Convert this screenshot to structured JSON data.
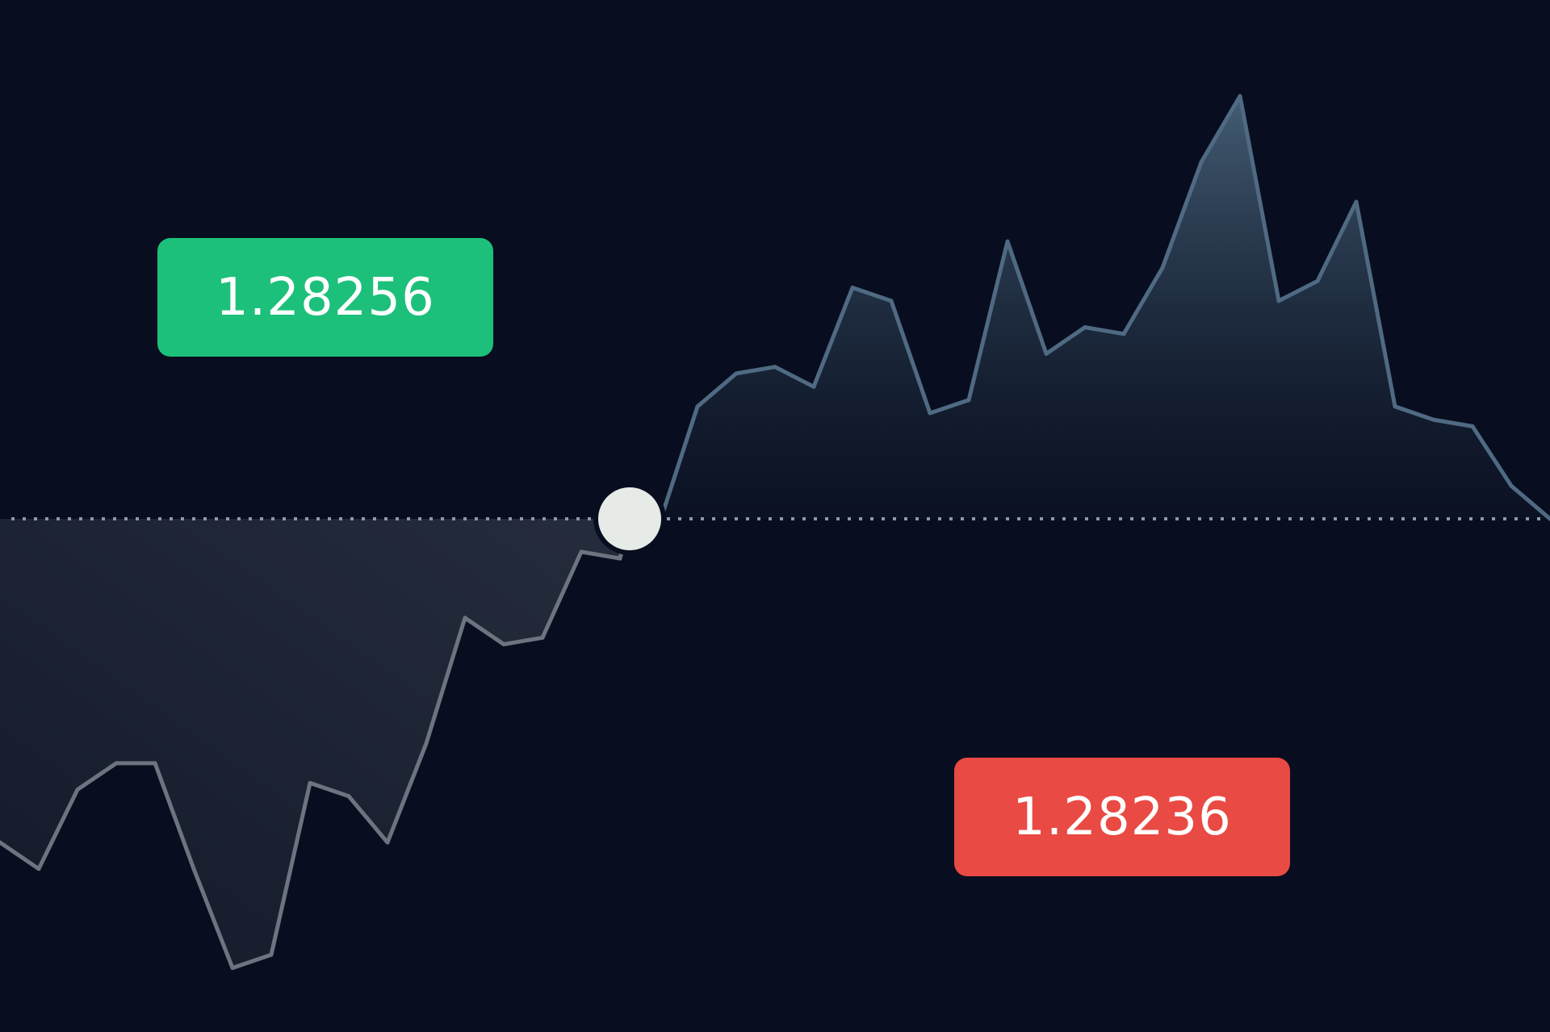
{
  "buy_price": {
    "label": "1.28256",
    "color": "#1dc07a"
  },
  "sell_price": {
    "label": "1.28236",
    "color": "#e94a43"
  },
  "colors": {
    "background": "#080e1f",
    "line_up": "#4f6a82",
    "line_down": "#6c7480",
    "baseline": "#8d98a6",
    "marker_fill": "#e6ebe8",
    "marker_ring": "#080e1f"
  },
  "chart_data": {
    "type": "line",
    "title": "",
    "xlabel": "",
    "ylabel": "",
    "grid": false,
    "legend": "none",
    "x": [
      0,
      1,
      2,
      3,
      4,
      5,
      6,
      7,
      8,
      9,
      10,
      11,
      12,
      13,
      14,
      15,
      16,
      17,
      18,
      19,
      20,
      21,
      22,
      23,
      24,
      25,
      26,
      27,
      28,
      29,
      30,
      31,
      32,
      33,
      34,
      35,
      36,
      37,
      38,
      39,
      40
    ],
    "y": [
      -4.9,
      -5.3,
      -4.1,
      -3.7,
      -3.7,
      -5.3,
      -6.8,
      -6.6,
      -4.0,
      -4.2,
      -4.9,
      -3.4,
      -1.5,
      -1.9,
      -1.8,
      -0.5,
      -0.6,
      -0.1,
      1.7,
      2.2,
      2.3,
      2.0,
      3.5,
      3.3,
      1.6,
      1.8,
      4.2,
      2.5,
      2.9,
      2.8,
      3.8,
      5.4,
      6.4,
      3.3,
      3.6,
      4.8,
      1.7,
      1.5,
      1.4,
      0.5,
      0.0
    ],
    "entry_index": 16.25,
    "entry_value": 0.0,
    "baseline_value": 0.0,
    "ylim": [
      -7,
      7
    ]
  }
}
